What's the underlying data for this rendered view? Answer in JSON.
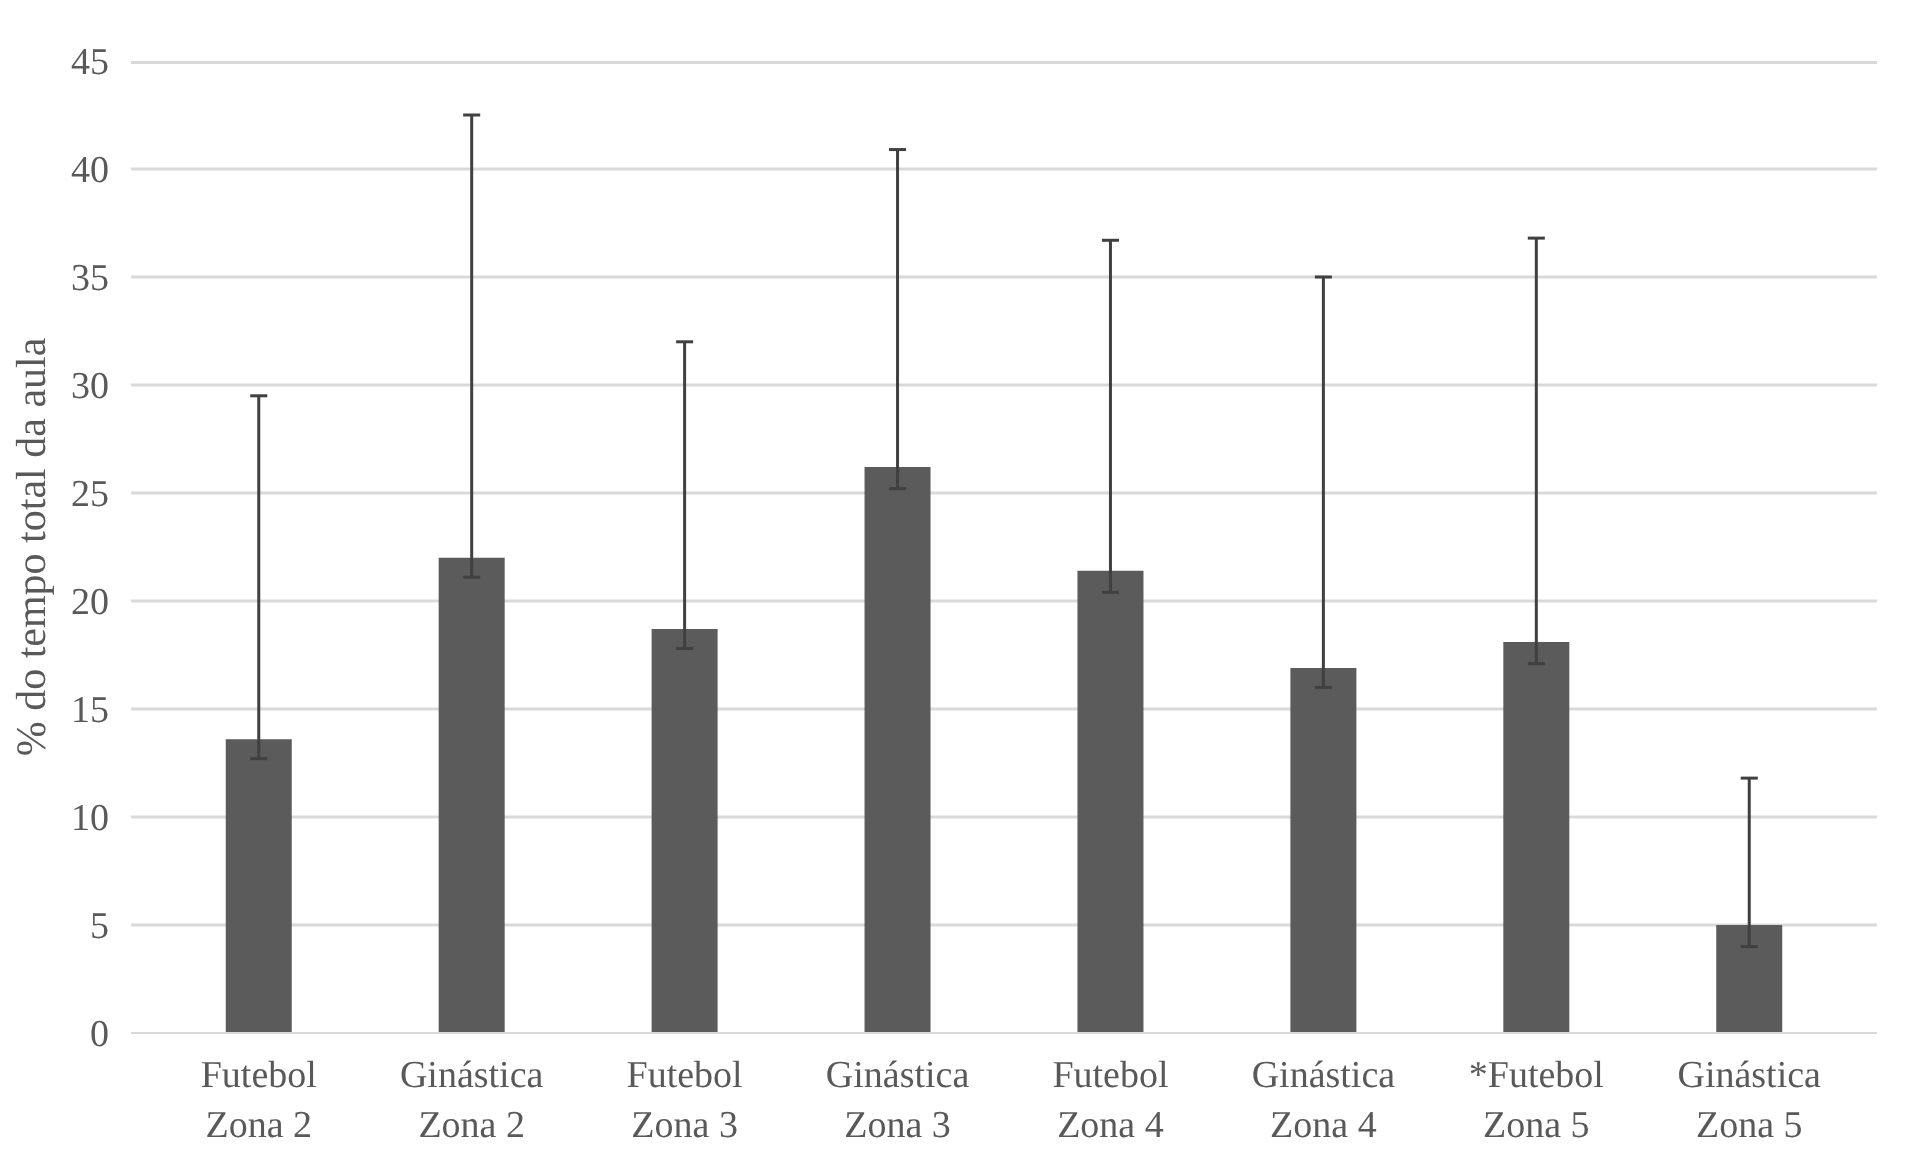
{
  "chart_data": {
    "type": "bar",
    "ylabel": "% do tempo total da aula",
    "categories": [
      "Futebol\nZona 2",
      "Ginástica\nZona 2",
      "Futebol\nZona 3",
      "Ginástica\nZona 3",
      "Futebol\nZona 4",
      "Ginástica\nZona 4",
      "*Futebol\nZona 5",
      "Ginástica\nZona 5"
    ],
    "values": [
      13.6,
      22.0,
      18.7,
      26.2,
      21.4,
      16.9,
      18.1,
      5.0
    ],
    "errors": [
      [
        12.7,
        29.5
      ],
      [
        21.1,
        42.5
      ],
      [
        17.8,
        32.0
      ],
      [
        25.2,
        40.9
      ],
      [
        20.4,
        36.7
      ],
      [
        16.0,
        35.0
      ],
      [
        17.1,
        36.8
      ],
      [
        4.0,
        11.8
      ]
    ],
    "color": "#5b5b5b",
    "ylim": [
      0,
      45
    ],
    "yticks": [
      0,
      5,
      10,
      15,
      20,
      25,
      30,
      35,
      40,
      45
    ],
    "grid": "y"
  }
}
